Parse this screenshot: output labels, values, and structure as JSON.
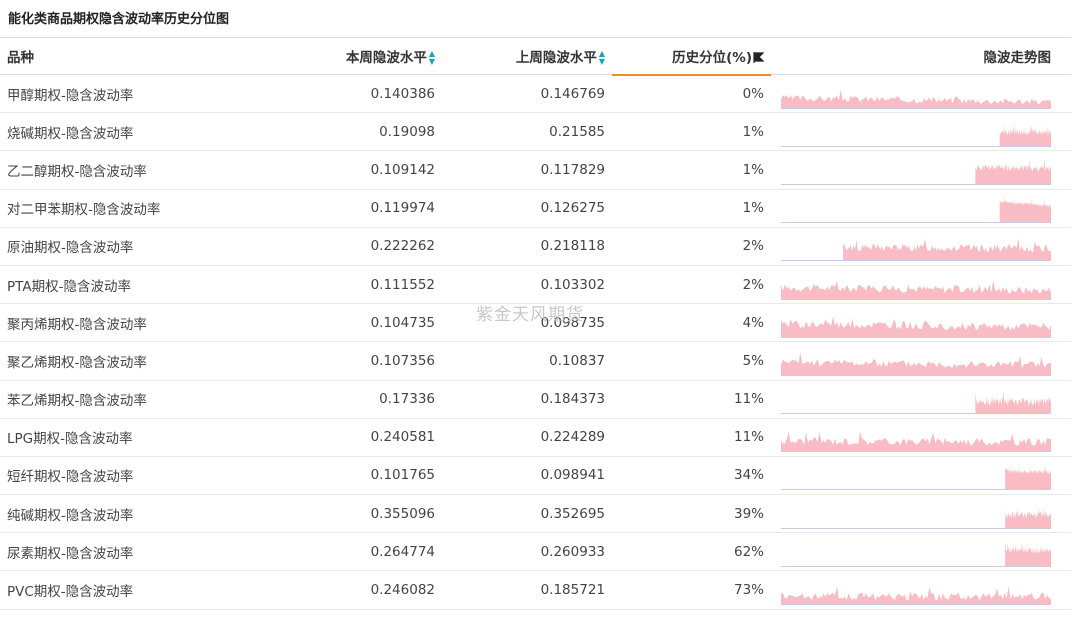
{
  "title": "能化类商品期权隐含波动率历史分位图",
  "watermark": "紫金天风期货",
  "columns": {
    "name": "品种",
    "this_week": "本周隐波水平",
    "last_week": "上周隐波水平",
    "percentile": "历史分位(%)",
    "trend": "隐波走势图"
  },
  "colors": {
    "spark_fill": "#f9bcc4",
    "sort_icon": "#1aa3b0",
    "active_sort_underline": "#ef8b2d"
  },
  "icons": {
    "sort": "sort-updown-icon",
    "active_sort": "flag-icon"
  },
  "rows": [
    {
      "name": "甲醇期权-隐含波动率",
      "this_week": "0.140386",
      "last_week": "0.146769",
      "percentile": "0%",
      "spark": {
        "start": 0.0,
        "level": 0.35,
        "noise": 0.25,
        "seed": 3,
        "trend": -0.3
      }
    },
    {
      "name": "烧碱期权-隐含波动率",
      "this_week": "0.19098",
      "last_week": "0.21585",
      "percentile": "1%",
      "spark": {
        "start": 0.81,
        "level": 0.5,
        "noise": 0.25,
        "seed": 7,
        "trend": 0
      }
    },
    {
      "name": "乙二醇期权-隐含波动率",
      "this_week": "0.109142",
      "last_week": "0.117829",
      "percentile": "1%",
      "spark": {
        "start": 0.72,
        "level": 0.6,
        "noise": 0.25,
        "seed": 11,
        "trend": -0.1
      }
    },
    {
      "name": "对二甲苯期权-隐含波动率",
      "this_week": "0.119974",
      "last_week": "0.126275",
      "percentile": "1%",
      "spark": {
        "start": 0.81,
        "level": 0.75,
        "noise": 0.12,
        "seed": 5,
        "trend": -0.35
      }
    },
    {
      "name": "原油期权-隐含波动率",
      "this_week": "0.222262",
      "last_week": "0.218118",
      "percentile": "2%",
      "spark": {
        "start": 0.23,
        "level": 0.45,
        "noise": 0.3,
        "seed": 13,
        "trend": -0.1
      }
    },
    {
      "name": "PTA期权-隐含波动率",
      "this_week": "0.111552",
      "last_week": "0.103302",
      "percentile": "2%",
      "spark": {
        "start": 0.0,
        "level": 0.4,
        "noise": 0.3,
        "seed": 17,
        "trend": -0.2
      }
    },
    {
      "name": "聚丙烯期权-隐含波动率",
      "this_week": "0.104735",
      "last_week": "0.098735",
      "percentile": "4%",
      "spark": {
        "start": 0.0,
        "level": 0.45,
        "noise": 0.3,
        "seed": 19,
        "trend": -0.2
      }
    },
    {
      "name": "聚乙烯期权-隐含波动率",
      "this_week": "0.107356",
      "last_week": "0.10837",
      "percentile": "5%",
      "spark": {
        "start": 0.0,
        "level": 0.45,
        "noise": 0.3,
        "seed": 23,
        "trend": -0.2
      }
    },
    {
      "name": "苯乙烯期权-隐含波动率",
      "this_week": "0.17336",
      "last_week": "0.184373",
      "percentile": "11%",
      "spark": {
        "start": 0.72,
        "level": 0.4,
        "noise": 0.3,
        "seed": 29,
        "trend": 0
      }
    },
    {
      "name": "LPG期权-隐含波动率",
      "this_week": "0.240581",
      "last_week": "0.224289",
      "percentile": "11%",
      "spark": {
        "start": 0.0,
        "level": 0.35,
        "noise": 0.3,
        "seed": 31,
        "trend": -0.1
      }
    },
    {
      "name": "短纤期权-隐含波动率",
      "this_week": "0.101765",
      "last_week": "0.098941",
      "percentile": "34%",
      "spark": {
        "start": 0.83,
        "level": 0.65,
        "noise": 0.2,
        "seed": 37,
        "trend": -0.1
      }
    },
    {
      "name": "纯碱期权-隐含波动率",
      "this_week": "0.355096",
      "last_week": "0.352695",
      "percentile": "39%",
      "spark": {
        "start": 0.83,
        "level": 0.45,
        "noise": 0.3,
        "seed": 41,
        "trend": 0.1
      }
    },
    {
      "name": "尿素期权-隐含波动率",
      "this_week": "0.264774",
      "last_week": "0.260933",
      "percentile": "62%",
      "spark": {
        "start": 0.83,
        "level": 0.6,
        "noise": 0.25,
        "seed": 43,
        "trend": -0.1
      }
    },
    {
      "name": "PVC期权-隐含波动率",
      "this_week": "0.246082",
      "last_week": "0.185721",
      "percentile": "73%",
      "spark": {
        "start": 0.0,
        "level": 0.25,
        "noise": 0.3,
        "seed": 47,
        "trend": 0
      }
    }
  ]
}
